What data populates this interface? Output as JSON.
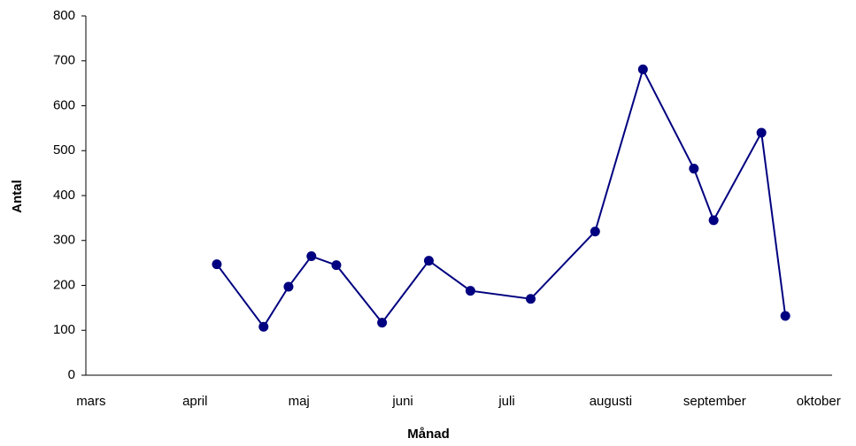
{
  "chart_data": {
    "type": "line",
    "xlabel": "Månad",
    "ylabel": "Antal",
    "x": [
      1.21,
      1.66,
      1.9,
      2.12,
      2.36,
      2.8,
      3.25,
      3.65,
      4.23,
      4.85,
      5.31,
      5.8,
      5.99,
      6.45,
      6.68
    ],
    "series": [
      {
        "name": "Antal",
        "color": "#000080",
        "values": [
          247,
          108,
          197,
          265,
          245,
          117,
          255,
          188,
          170,
          320,
          681,
          460,
          345,
          540,
          132
        ]
      }
    ],
    "xlim": [
      -0.05,
      7.13
    ],
    "xticks": [
      {
        "value": 0,
        "label": "mars"
      },
      {
        "value": 1,
        "label": "april"
      },
      {
        "value": 2,
        "label": "maj"
      },
      {
        "value": 3,
        "label": "juni"
      },
      {
        "value": 4,
        "label": "juli"
      },
      {
        "value": 5,
        "label": "augusti"
      },
      {
        "value": 6,
        "label": "september"
      },
      {
        "value": 7,
        "label": "oktober"
      }
    ],
    "ylim": [
      0,
      800
    ],
    "yticks": [
      0,
      100,
      200,
      300,
      400,
      500,
      600,
      700,
      800
    ],
    "grid": false
  }
}
